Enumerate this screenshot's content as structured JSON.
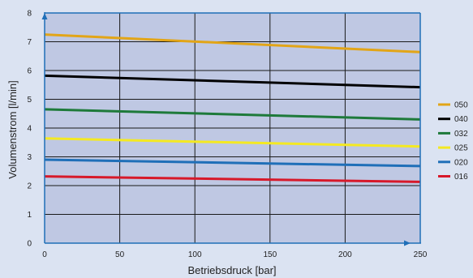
{
  "chart_data": {
    "type": "line",
    "title": "",
    "xlabel": "Betriebsdruck [bar]",
    "ylabel": "Volumenstrom [l/min]",
    "xlim": [
      0,
      250
    ],
    "ylim": [
      0,
      8
    ],
    "xticks": [
      0,
      50,
      100,
      150,
      200,
      250
    ],
    "yticks": [
      0,
      1,
      2,
      3,
      4,
      5,
      6,
      7,
      8
    ],
    "grid": true,
    "legend_position": "right",
    "x": [
      0,
      250
    ],
    "series": [
      {
        "name": "050",
        "color": "#e2a517",
        "values": [
          7.25,
          6.64
        ]
      },
      {
        "name": "040",
        "color": "#000000",
        "values": [
          5.82,
          5.42
        ]
      },
      {
        "name": "032",
        "color": "#1e7a3a",
        "values": [
          4.65,
          4.3
        ]
      },
      {
        "name": "025",
        "color": "#f4e922",
        "values": [
          3.64,
          3.36
        ]
      },
      {
        "name": "020",
        "color": "#1f6fb8",
        "values": [
          2.9,
          2.68
        ]
      },
      {
        "name": "016",
        "color": "#d7192a",
        "values": [
          2.32,
          2.13
        ]
      }
    ],
    "colors": {
      "plot_background": "#bfc8e3",
      "axis": "#1f6fb8",
      "grid": "#1a1a1a"
    }
  }
}
